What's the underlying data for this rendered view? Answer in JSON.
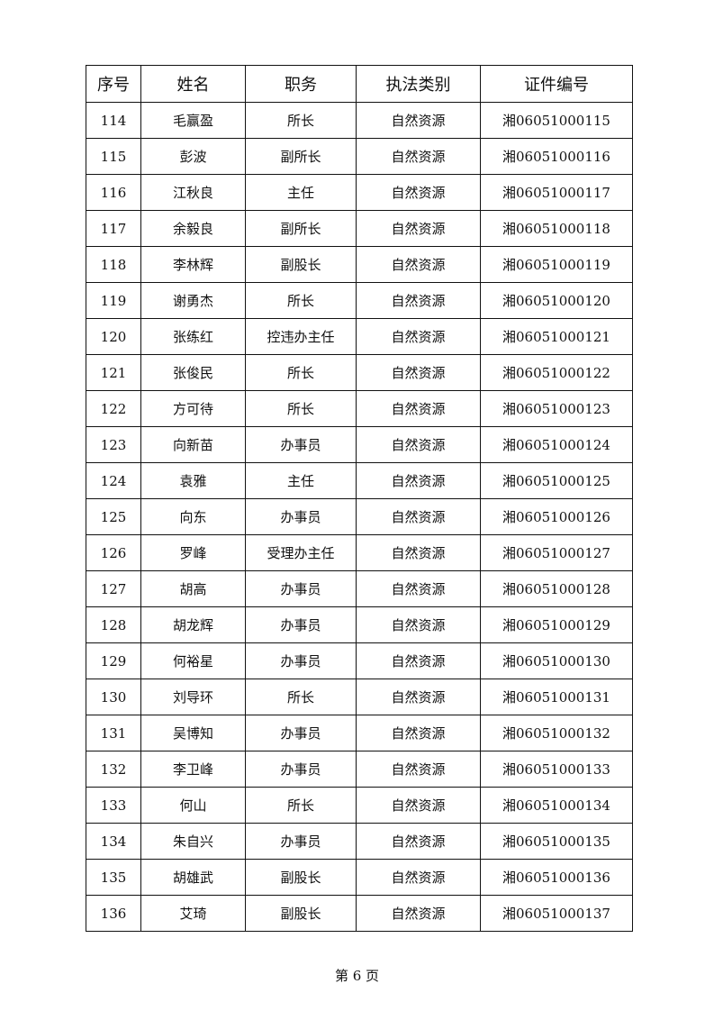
{
  "table": {
    "headers": [
      "序号",
      "姓名",
      "职务",
      "执法类别",
      "证件编号"
    ],
    "rows": [
      [
        "114",
        "毛赢盈",
        "所长",
        "自然资源",
        "湘06051000115"
      ],
      [
        "115",
        "彭波",
        "副所长",
        "自然资源",
        "湘06051000116"
      ],
      [
        "116",
        "江秋良",
        "主任",
        "自然资源",
        "湘06051000117"
      ],
      [
        "117",
        "余毅良",
        "副所长",
        "自然资源",
        "湘06051000118"
      ],
      [
        "118",
        "李林辉",
        "副股长",
        "自然资源",
        "湘06051000119"
      ],
      [
        "119",
        "谢勇杰",
        "所长",
        "自然资源",
        "湘06051000120"
      ],
      [
        "120",
        "张练红",
        "控违办主任",
        "自然资源",
        "湘06051000121"
      ],
      [
        "121",
        "张俊民",
        "所长",
        "自然资源",
        "湘06051000122"
      ],
      [
        "122",
        "方可待",
        "所长",
        "自然资源",
        "湘06051000123"
      ],
      [
        "123",
        "向新苗",
        "办事员",
        "自然资源",
        "湘06051000124"
      ],
      [
        "124",
        "袁雅",
        "主任",
        "自然资源",
        "湘06051000125"
      ],
      [
        "125",
        "向东",
        "办事员",
        "自然资源",
        "湘06051000126"
      ],
      [
        "126",
        "罗峰",
        "受理办主任",
        "自然资源",
        "湘06051000127"
      ],
      [
        "127",
        "胡高",
        "办事员",
        "自然资源",
        "湘06051000128"
      ],
      [
        "128",
        "胡龙辉",
        "办事员",
        "自然资源",
        "湘06051000129"
      ],
      [
        "129",
        "何裕星",
        "办事员",
        "自然资源",
        "湘06051000130"
      ],
      [
        "130",
        "刘导环",
        "所长",
        "自然资源",
        "湘06051000131"
      ],
      [
        "131",
        "吴博知",
        "办事员",
        "自然资源",
        "湘06051000132"
      ],
      [
        "132",
        "李卫峰",
        "办事员",
        "自然资源",
        "湘06051000133"
      ],
      [
        "133",
        "何山",
        "所长",
        "自然资源",
        "湘06051000134"
      ],
      [
        "134",
        "朱自兴",
        "办事员",
        "自然资源",
        "湘06051000135"
      ],
      [
        "135",
        "胡雄武",
        "副股长",
        "自然资源",
        "湘06051000136"
      ],
      [
        "136",
        "艾琦",
        "副股长",
        "自然资源",
        "湘06051000137"
      ]
    ]
  },
  "footer": {
    "page_label": "第 6 页"
  }
}
